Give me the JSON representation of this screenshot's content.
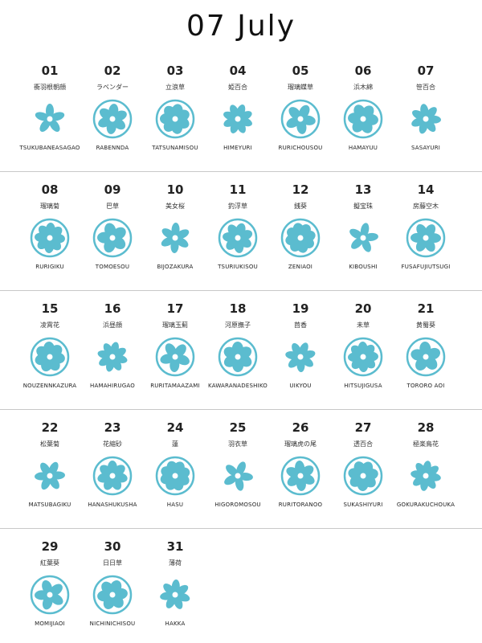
{
  "title": "07 July",
  "days": [
    {
      "number": "01",
      "name": "衝羽根朝顔",
      "romaji": "TSUKUBANEASAGAO"
    },
    {
      "number": "02",
      "name": "ラベンダー",
      "romaji": "RABENNDA"
    },
    {
      "number": "03",
      "name": "立浪草",
      "romaji": "TATSUNAMISOU"
    },
    {
      "number": "04",
      "name": "姫百合",
      "romaji": "HIMEYURI"
    },
    {
      "number": "05",
      "name": "瑠璃蝶草",
      "romaji": "RURICHOUSOU"
    },
    {
      "number": "06",
      "name": "浜木綿",
      "romaji": "HAMAYUU"
    },
    {
      "number": "07",
      "name": "笹百合",
      "romaji": "SASAYURI"
    },
    {
      "number": "08",
      "name": "瑠璃菊",
      "romaji": "RURIGIKU"
    },
    {
      "number": "09",
      "name": "巴草",
      "romaji": "TOMOESOU"
    },
    {
      "number": "10",
      "name": "美女桜",
      "romaji": "BIJOZAKURA"
    },
    {
      "number": "11",
      "name": "釣浮草",
      "romaji": "TSURIUKISOU"
    },
    {
      "number": "12",
      "name": "銭葵",
      "romaji": "ZENIAOI"
    },
    {
      "number": "13",
      "name": "擬宝珠",
      "romaji": "KIBOUSHI"
    },
    {
      "number": "14",
      "name": "房藤空木",
      "romaji": "FUSAFUJIUTSUGI"
    },
    {
      "number": "15",
      "name": "凌霄花",
      "romaji": "NOUZENNKAZURA"
    },
    {
      "number": "16",
      "name": "浜昼顔",
      "romaji": "HAMAHIRUGAO"
    },
    {
      "number": "17",
      "name": "瑠璃玉薊",
      "romaji": "RURITAMAAZAMI"
    },
    {
      "number": "18",
      "name": "河原撫子",
      "romaji": "KAWARANADESHIKO"
    },
    {
      "number": "19",
      "name": "茴香",
      "romaji": "UIKYOU"
    },
    {
      "number": "20",
      "name": "未草",
      "romaji": "HITSUJIGUSA"
    },
    {
      "number": "21",
      "name": "黄蜀葵",
      "romaji": "TORORO AOI"
    },
    {
      "number": "22",
      "name": "松葉菊",
      "romaji": "MATSUBAGIKU"
    },
    {
      "number": "23",
      "name": "花縮砂",
      "romaji": "HANASHUKUSHA"
    },
    {
      "number": "24",
      "name": "蓮",
      "romaji": "HASU"
    },
    {
      "number": "25",
      "name": "羽衣草",
      "romaji": "HIGOROMOSOU"
    },
    {
      "number": "26",
      "name": "瑠璃虎の尾",
      "romaji": "RURITORANOO"
    },
    {
      "number": "27",
      "name": "透百合",
      "romaji": "SUKASHIYURI"
    },
    {
      "number": "28",
      "name": "極楽鳥花",
      "romaji": "GOKURAKUCHOUKA"
    },
    {
      "number": "29",
      "name": "紅葉葵",
      "romaji": "MOMIJIAOI"
    },
    {
      "number": "30",
      "name": "日日草",
      "romaji": "NICHINICHISOU"
    },
    {
      "number": "31",
      "name": "薄荷",
      "romaji": "HAKKA"
    }
  ]
}
